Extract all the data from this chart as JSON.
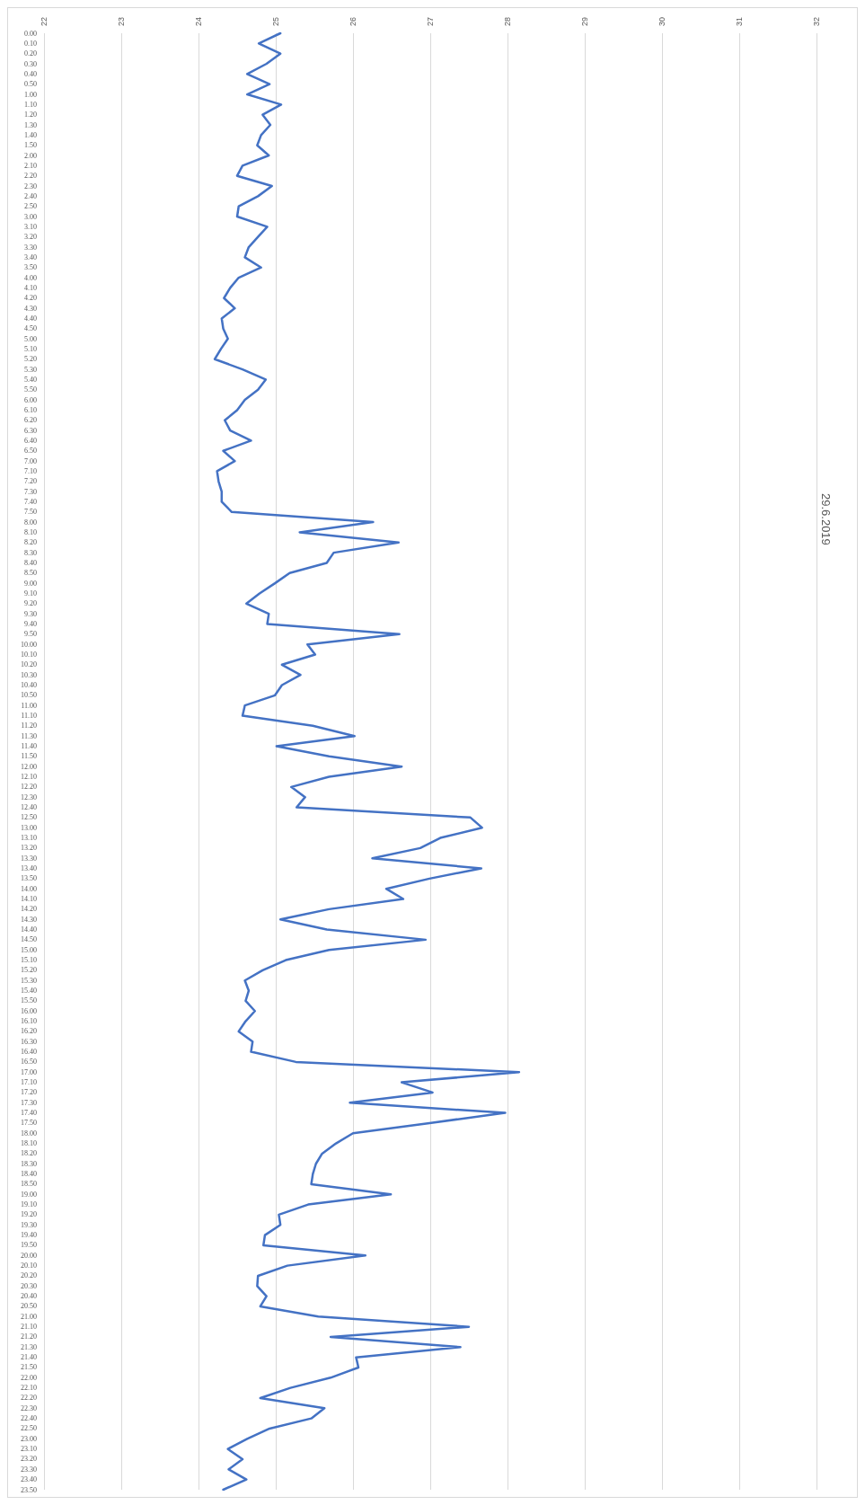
{
  "chart_data": {
    "type": "line",
    "orientation": "horizontal",
    "title": "29.6.2019",
    "categories": [
      "0.00",
      "0.10",
      "0.20",
      "0.30",
      "0.40",
      "0.50",
      "1.00",
      "1.10",
      "1.20",
      "1.30",
      "1.40",
      "1.50",
      "2.00",
      "2.10",
      "2.20",
      "2.30",
      "2.40",
      "2.50",
      "3.00",
      "3.10",
      "3.20",
      "3.30",
      "3.40",
      "3.50",
      "4.00",
      "4.10",
      "4.20",
      "4.30",
      "4.40",
      "4.50",
      "5.00",
      "5.10",
      "5.20",
      "5.30",
      "5.40",
      "5.50",
      "6.00",
      "6.10",
      "6.20",
      "6.30",
      "6.40",
      "6.50",
      "7.00",
      "7.10",
      "7.20",
      "7.30",
      "7.40",
      "7.50",
      "8.00",
      "8.10",
      "8.20",
      "8.30",
      "8.40",
      "8.50",
      "9.00",
      "9.10",
      "9.20",
      "9.30",
      "9.40",
      "9.50",
      "10.00",
      "10.10",
      "10.20",
      "10.30",
      "10.40",
      "10.50",
      "11.00",
      "11.10",
      "11.20",
      "11.30",
      "11.40",
      "11.50",
      "12.00",
      "12.10",
      "12.20",
      "12.30",
      "12.40",
      "12.50",
      "13.00",
      "13.10",
      "13.20",
      "13.30",
      "13.40",
      "13.50",
      "14.00",
      "14.10",
      "14.20",
      "14.30",
      "14.40",
      "14.50",
      "15.00",
      "15.10",
      "15.20",
      "15.30",
      "15.40",
      "15.50",
      "16.00",
      "16.10",
      "16.20",
      "16.30",
      "16.40",
      "16.50",
      "17.00",
      "17.10",
      "17.20",
      "17.30",
      "17.40",
      "17.50",
      "18.00",
      "18.10",
      "18.20",
      "18.30",
      "18.40",
      "18.50",
      "19.00",
      "19.10",
      "19.20",
      "19.30",
      "19.40",
      "19.50",
      "20.00",
      "20.10",
      "20.20",
      "20.30",
      "20.40",
      "20.50",
      "21.00",
      "21.10",
      "21.20",
      "21.30",
      "21.40",
      "21.50",
      "22.00",
      "22.10",
      "22.20",
      "22.30",
      "22.40",
      "22.50",
      "23.00",
      "23.10",
      "23.20",
      "23.30",
      "23.40",
      "23.50"
    ],
    "color": "#4472c4",
    "values": [
      25.06,
      24.78,
      25.06,
      24.88,
      24.63,
      24.92,
      24.63,
      25.07,
      24.83,
      24.93,
      24.81,
      24.76,
      24.91,
      24.57,
      24.5,
      24.95,
      24.77,
      24.52,
      24.5,
      24.89,
      24.77,
      24.65,
      24.6,
      24.81,
      24.52,
      24.41,
      24.33,
      24.47,
      24.3,
      24.32,
      24.38,
      24.29,
      24.21,
      24.57,
      24.87,
      24.77,
      24.6,
      24.5,
      24.34,
      24.41,
      24.68,
      24.32,
      24.47,
      24.24,
      24.26,
      24.3,
      24.3,
      24.43,
      26.26,
      25.31,
      26.59,
      25.75,
      25.66,
      25.18,
      24.99,
      24.79,
      24.62,
      24.91,
      24.89,
      26.6,
      25.41,
      25.51,
      25.08,
      25.32,
      25.08,
      24.99,
      24.6,
      24.57,
      25.48,
      26.02,
      25.01,
      25.69,
      26.63,
      25.69,
      25.2,
      25.38,
      25.27,
      27.52,
      27.67,
      27.13,
      26.87,
      26.25,
      27.66,
      26.99,
      26.43,
      26.65,
      25.69,
      25.06,
      25.66,
      26.94,
      25.69,
      25.13,
      24.83,
      24.6,
      24.65,
      24.61,
      24.73,
      24.61,
      24.52,
      24.7,
      24.68,
      25.26,
      28.15,
      26.63,
      27.03,
      25.96,
      27.97,
      26.99,
      26.0,
      25.78,
      25.6,
      25.52,
      25.48,
      25.46,
      26.49,
      25.42,
      25.04,
      25.06,
      24.86,
      24.84,
      26.16,
      25.15,
      24.77,
      24.76,
      24.88,
      24.8,
      25.55,
      27.5,
      25.71,
      27.39,
      26.04,
      26.07,
      25.71,
      25.19,
      24.8,
      25.63,
      25.46,
      24.92,
      24.63,
      24.38,
      24.57,
      24.39,
      24.62,
      24.32
    ],
    "xlim": [
      22,
      32
    ],
    "xticks": [
      22,
      23,
      24,
      25,
      26,
      27,
      28,
      29,
      30,
      31,
      32
    ],
    "grid": "x",
    "marker": "none",
    "line_style": "solid"
  }
}
